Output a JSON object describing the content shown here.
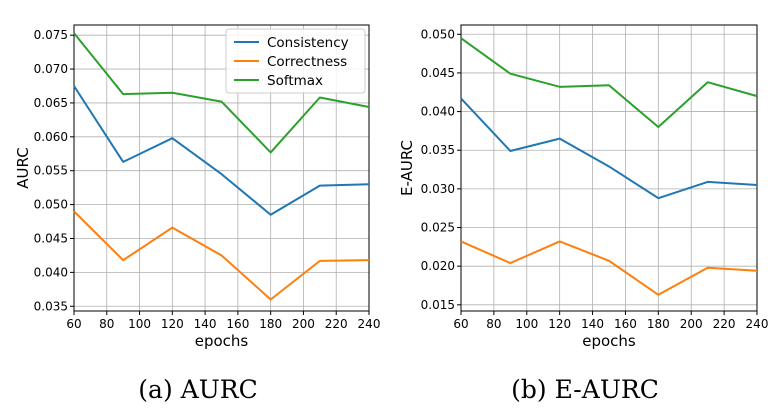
{
  "chart_data": [
    {
      "type": "line",
      "xlabel": "epochs",
      "ylabel": "AURC",
      "caption": "(a) AURC",
      "x": [
        60,
        90,
        120,
        150,
        180,
        210,
        240
      ],
      "xlim": [
        60,
        240
      ],
      "xticks": [
        60,
        80,
        100,
        120,
        140,
        160,
        180,
        200,
        220,
        240
      ],
      "xtick_labels": [
        "60",
        "80",
        "100",
        "120",
        "140",
        "160",
        "180",
        "200",
        "220",
        "240"
      ],
      "ylim": [
        0.0343,
        0.0765
      ],
      "yticks": [
        0.035,
        0.04,
        0.045,
        0.05,
        0.055,
        0.06,
        0.065,
        0.07,
        0.075
      ],
      "ytick_labels": [
        "0.035",
        "0.040",
        "0.045",
        "0.050",
        "0.055",
        "0.060",
        "0.065",
        "0.070",
        "0.075"
      ],
      "grid": true,
      "legend": "top-right",
      "series": [
        {
          "name": "Consistency",
          "color": "#1f77b4",
          "values": [
            0.0675,
            0.0563,
            0.0598,
            0.0545,
            0.0485,
            0.0528,
            0.053
          ]
        },
        {
          "name": "Correctness",
          "color": "#ff7f0e",
          "values": [
            0.049,
            0.0418,
            0.0466,
            0.0425,
            0.036,
            0.0417,
            0.0418
          ]
        },
        {
          "name": "Softmax",
          "color": "#2ca02c",
          "values": [
            0.0753,
            0.0663,
            0.0665,
            0.0652,
            0.0577,
            0.0658,
            0.0644
          ]
        }
      ]
    },
    {
      "type": "line",
      "xlabel": "epochs",
      "ylabel": "E-AURC",
      "caption": "(b) E-AURC",
      "x": [
        60,
        90,
        120,
        150,
        180,
        210,
        240
      ],
      "xlim": [
        60,
        240
      ],
      "xticks": [
        60,
        80,
        100,
        120,
        140,
        160,
        180,
        200,
        220,
        240
      ],
      "xtick_labels": [
        "60",
        "80",
        "100",
        "120",
        "140",
        "160",
        "180",
        "200",
        "220",
        "240"
      ],
      "ylim": [
        0.0142,
        0.0512
      ],
      "yticks": [
        0.015,
        0.02,
        0.025,
        0.03,
        0.035,
        0.04,
        0.045,
        0.05
      ],
      "ytick_labels": [
        "0.015",
        "0.020",
        "0.025",
        "0.030",
        "0.035",
        "0.040",
        "0.045",
        "0.050"
      ],
      "grid": true,
      "legend": "none",
      "series": [
        {
          "name": "Consistency",
          "color": "#1f77b4",
          "values": [
            0.0417,
            0.0349,
            0.0365,
            0.0329,
            0.0288,
            0.0309,
            0.0305
          ]
        },
        {
          "name": "Correctness",
          "color": "#ff7f0e",
          "values": [
            0.0232,
            0.0204,
            0.0232,
            0.0207,
            0.0163,
            0.0198,
            0.0194
          ]
        },
        {
          "name": "Softmax",
          "color": "#2ca02c",
          "values": [
            0.0495,
            0.0449,
            0.0432,
            0.0434,
            0.038,
            0.0438,
            0.042
          ]
        }
      ]
    }
  ]
}
